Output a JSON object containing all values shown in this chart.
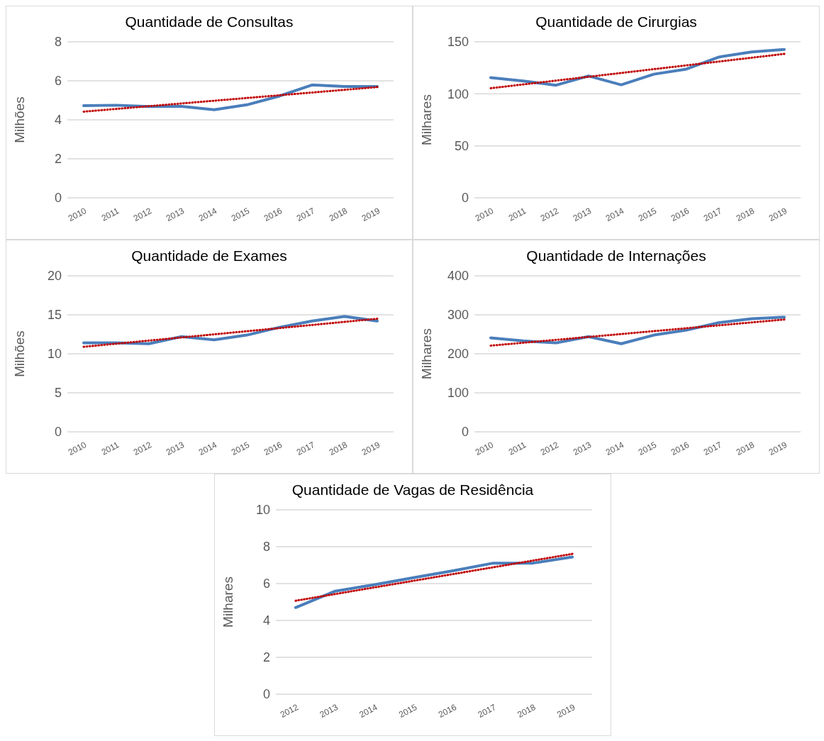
{
  "chart_data": [
    {
      "type": "line",
      "title": "Quantidade de Consultas",
      "ylabel": "Milhões",
      "x": [
        2010,
        2011,
        2012,
        2013,
        2014,
        2015,
        2016,
        2017,
        2018,
        2019
      ],
      "xlim": [
        2009.5,
        2019.5
      ],
      "xticks": [
        2010,
        2011,
        2012,
        2013,
        2014,
        2015,
        2016,
        2017,
        2018,
        2019
      ],
      "ylim": [
        0,
        8
      ],
      "yticks": [
        0,
        2,
        4,
        6,
        8
      ],
      "grid": "y",
      "marker": "none",
      "series": [
        {
          "color": "#4a7ebb",
          "line_style": "solid",
          "values": [
            4.73,
            4.75,
            4.68,
            4.69,
            4.52,
            4.77,
            5.22,
            5.79,
            5.71,
            5.71
          ]
        },
        {
          "type": "line",
          "color": "#c00000",
          "line_style": "dotted",
          "x": [
            2010,
            2019
          ],
          "values": [
            4.42,
            5.68
          ]
        }
      ]
    },
    {
      "type": "line",
      "title": "Quantidade de Cirurgias",
      "ylabel": "Milhares",
      "x": [
        2010,
        2011,
        2012,
        2013,
        2014,
        2015,
        2016,
        2017,
        2018,
        2019
      ],
      "xlim": [
        2009.5,
        2019.5
      ],
      "xticks": [
        2010,
        2011,
        2012,
        2013,
        2014,
        2015,
        2016,
        2017,
        2018,
        2019
      ],
      "ylim": [
        0,
        150
      ],
      "yticks": [
        0,
        50,
        100,
        150
      ],
      "grid": "y",
      "marker": "none",
      "series": [
        {
          "color": "#4a7ebb",
          "line_style": "solid",
          "values": [
            115.6,
            112.3,
            108.3,
            117.2,
            108.7,
            118.9,
            123.8,
            135.4,
            140.3,
            142.7
          ]
        },
        {
          "type": "line",
          "color": "#c00000",
          "line_style": "dotted",
          "x": [
            2010,
            2019
          ],
          "values": [
            105.4,
            138.4
          ]
        }
      ]
    },
    {
      "type": "line",
      "title": "Quantidade de Exames",
      "ylabel": "Milhões",
      "x": [
        2010,
        2011,
        2012,
        2013,
        2014,
        2015,
        2016,
        2017,
        2018,
        2019
      ],
      "xlim": [
        2009.5,
        2019.5
      ],
      "xticks": [
        2010,
        2011,
        2012,
        2013,
        2014,
        2015,
        2016,
        2017,
        2018,
        2019
      ],
      "ylim": [
        0,
        20
      ],
      "yticks": [
        0,
        5,
        10,
        15,
        20
      ],
      "grid": "y",
      "marker": "none",
      "series": [
        {
          "color": "#4a7ebb",
          "line_style": "solid",
          "values": [
            11.4,
            11.4,
            11.3,
            12.2,
            11.8,
            12.4,
            13.4,
            14.2,
            14.8,
            14.2
          ]
        },
        {
          "type": "line",
          "color": "#c00000",
          "line_style": "dotted",
          "x": [
            2010,
            2019
          ],
          "values": [
            10.9,
            14.5
          ]
        }
      ]
    },
    {
      "type": "line",
      "title": "Quantidade de Internações",
      "ylabel": "Milhares",
      "x": [
        2010,
        2011,
        2012,
        2013,
        2014,
        2015,
        2016,
        2017,
        2018,
        2019
      ],
      "xlim": [
        2009.5,
        2019.5
      ],
      "xticks": [
        2010,
        2011,
        2012,
        2013,
        2014,
        2015,
        2016,
        2017,
        2018,
        2019
      ],
      "ylim": [
        0,
        400
      ],
      "yticks": [
        0,
        100,
        200,
        300,
        400
      ],
      "grid": "y",
      "marker": "none",
      "series": [
        {
          "color": "#4a7ebb",
          "line_style": "solid",
          "values": [
            241,
            233,
            228,
            244,
            226,
            248,
            261,
            280,
            290,
            294
          ]
        },
        {
          "type": "line",
          "color": "#c00000",
          "line_style": "dotted",
          "x": [
            2010,
            2019
          ],
          "values": [
            221,
            288
          ]
        }
      ]
    },
    {
      "type": "line",
      "title": "Quantidade de Vagas de Residência",
      "ylabel": "Milhares",
      "x": [
        2012,
        2013,
        2014,
        2015,
        2016,
        2017,
        2018,
        2019
      ],
      "xlim": [
        2011.5,
        2019.5
      ],
      "xticks": [
        2012,
        2013,
        2014,
        2015,
        2016,
        2017,
        2018,
        2019
      ],
      "ylim": [
        0,
        10
      ],
      "yticks": [
        0,
        2,
        4,
        6,
        8,
        10
      ],
      "grid": "y",
      "marker": "none",
      "series": [
        {
          "color": "#4a7ebb",
          "line_style": "solid",
          "values": [
            4.7,
            5.59,
            5.94,
            6.33,
            6.7,
            7.11,
            7.11,
            7.44
          ]
        },
        {
          "type": "line",
          "color": "#c00000",
          "line_style": "dotted",
          "x": [
            2012,
            2019
          ],
          "values": [
            5.07,
            7.61
          ]
        }
      ]
    }
  ]
}
